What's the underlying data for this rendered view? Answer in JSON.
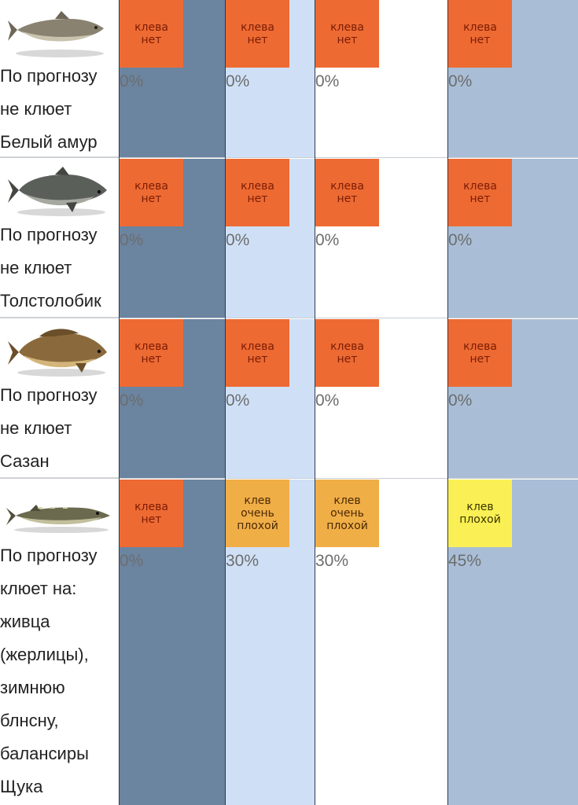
{
  "rows": [
    {
      "fish_icon": "white-amur-fish-icon",
      "text_lines": [
        "По прогнозу",
        "не клюет",
        "Белый амур"
      ],
      "cells": [
        {
          "badge": [
            "клева",
            "нет"
          ],
          "level": "none",
          "percent": "0%"
        },
        {
          "badge": [
            "клева",
            "нет"
          ],
          "level": "none",
          "percent": "0%"
        },
        {
          "badge": [
            "клева",
            "нет"
          ],
          "level": "none",
          "percent": "0%"
        },
        {
          "badge": [
            "клева",
            "нет"
          ],
          "level": "none",
          "percent": "0%"
        }
      ]
    },
    {
      "fish_icon": "silver-carp-fish-icon",
      "text_lines": [
        "По прогнозу",
        "не клюет",
        "Толстолобик"
      ],
      "cells": [
        {
          "badge": [
            "клева",
            "нет"
          ],
          "level": "none",
          "percent": "0%"
        },
        {
          "badge": [
            "клева",
            "нет"
          ],
          "level": "none",
          "percent": "0%"
        },
        {
          "badge": [
            "клева",
            "нет"
          ],
          "level": "none",
          "percent": "0%"
        },
        {
          "badge": [
            "клева",
            "нет"
          ],
          "level": "none",
          "percent": "0%"
        }
      ]
    },
    {
      "fish_icon": "carp-fish-icon",
      "text_lines": [
        "По прогнозу",
        "не клюет",
        "Сазан"
      ],
      "cells": [
        {
          "badge": [
            "клева",
            "нет"
          ],
          "level": "none",
          "percent": "0%"
        },
        {
          "badge": [
            "клева",
            "нет"
          ],
          "level": "none",
          "percent": "0%"
        },
        {
          "badge": [
            "клева",
            "нет"
          ],
          "level": "none",
          "percent": "0%"
        },
        {
          "badge": [
            "клева",
            "нет"
          ],
          "level": "none",
          "percent": "0%"
        }
      ]
    },
    {
      "fish_icon": "pike-fish-icon",
      "text_lines": [
        "По прогнозу",
        "клюет на:",
        "живца",
        "(жерлицы),",
        "зимнюю",
        "блнсну,",
        "балансиры",
        "Щука"
      ],
      "cells": [
        {
          "badge": [
            "клева",
            "нет"
          ],
          "level": "none",
          "percent": "0%"
        },
        {
          "badge": [
            "клев",
            "очень",
            "плохой"
          ],
          "level": "very-bad",
          "percent": "30%"
        },
        {
          "badge": [
            "клев",
            "очень",
            "плохой"
          ],
          "level": "very-bad",
          "percent": "30%"
        },
        {
          "badge": [
            "клев",
            "плохой"
          ],
          "level": "bad",
          "percent": "45%"
        }
      ]
    }
  ],
  "colors": {
    "none": "#ee6a33",
    "very-bad": "#f0ae47",
    "bad": "#faf055"
  }
}
